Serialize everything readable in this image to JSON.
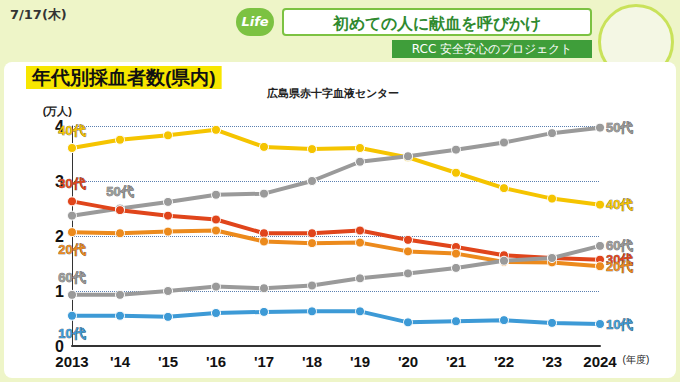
{
  "header": {
    "date": "7/17(木)",
    "logo": "Life",
    "headline": "初めての人に献血を呼びかけ",
    "program": "RCC 安全安心のプロジェクト"
  },
  "chart_data": {
    "type": "line",
    "title": "年代別採血者数(県内)",
    "subtitle": "広島県赤十字血液センター",
    "y_label": "(万人)",
    "x_label": "(年度)",
    "categories": [
      "2013",
      "'14",
      "'15",
      "'16",
      "'17",
      "'18",
      "'19",
      "'20",
      "'21",
      "'22",
      "'23",
      "2024"
    ],
    "series": [
      {
        "name": "40代",
        "color": "#f5c400",
        "marker": "circle",
        "values": [
          3.6,
          3.75,
          3.83,
          3.93,
          3.62,
          3.58,
          3.6,
          3.43,
          3.15,
          2.87,
          2.68,
          2.57
        ]
      },
      {
        "name": "50代",
        "color": "#9a9a9a",
        "marker": "circle",
        "values": [
          2.37,
          2.5,
          2.62,
          2.75,
          2.77,
          3.0,
          3.35,
          3.45,
          3.57,
          3.7,
          3.87,
          3.97
        ]
      },
      {
        "name": "30代",
        "color": "#e0451b",
        "marker": "circle",
        "values": [
          2.63,
          2.47,
          2.37,
          2.3,
          2.05,
          2.05,
          2.1,
          1.93,
          1.8,
          1.65,
          1.6,
          1.57
        ]
      },
      {
        "name": "20代",
        "color": "#ec8a1c",
        "marker": "circle",
        "values": [
          2.07,
          2.05,
          2.08,
          2.1,
          1.9,
          1.87,
          1.88,
          1.72,
          1.68,
          1.53,
          1.52,
          1.45
        ]
      },
      {
        "name": "60代",
        "color": "#9a9a9a",
        "marker": "circle",
        "values": [
          0.93,
          0.93,
          1.0,
          1.08,
          1.05,
          1.1,
          1.23,
          1.32,
          1.42,
          1.55,
          1.6,
          1.82
        ]
      },
      {
        "name": "10代",
        "color": "#3d9ad6",
        "marker": "circle",
        "values": [
          0.55,
          0.55,
          0.53,
          0.6,
          0.62,
          0.63,
          0.63,
          0.43,
          0.45,
          0.47,
          0.42,
          0.4
        ]
      }
    ],
    "ylim": [
      0,
      4
    ],
    "yticks": [
      0,
      1,
      2,
      3,
      4
    ],
    "grid": true
  }
}
